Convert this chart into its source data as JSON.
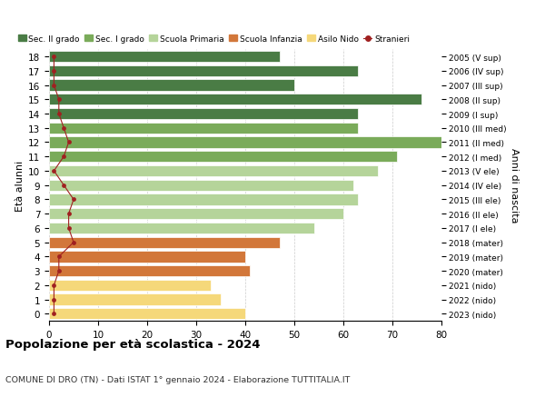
{
  "ages": [
    18,
    17,
    16,
    15,
    14,
    13,
    12,
    11,
    10,
    9,
    8,
    7,
    6,
    5,
    4,
    3,
    2,
    1,
    0
  ],
  "years": [
    "2005 (V sup)",
    "2006 (IV sup)",
    "2007 (III sup)",
    "2008 (II sup)",
    "2009 (I sup)",
    "2010 (III med)",
    "2011 (II med)",
    "2012 (I med)",
    "2013 (V ele)",
    "2014 (IV ele)",
    "2015 (III ele)",
    "2016 (II ele)",
    "2017 (I ele)",
    "2018 (mater)",
    "2019 (mater)",
    "2020 (mater)",
    "2021 (nido)",
    "2022 (nido)",
    "2023 (nido)"
  ],
  "values": [
    47,
    63,
    50,
    76,
    63,
    63,
    80,
    71,
    67,
    62,
    63,
    60,
    54,
    47,
    40,
    41,
    33,
    35,
    40
  ],
  "stranieri": [
    1,
    1,
    1,
    2,
    2,
    3,
    4,
    3,
    1,
    3,
    5,
    4,
    4,
    5,
    2,
    2,
    1,
    1,
    1
  ],
  "bar_colors": [
    "#4a7c45",
    "#4a7c45",
    "#4a7c45",
    "#4a7c45",
    "#4a7c45",
    "#7aab5a",
    "#7aab5a",
    "#7aab5a",
    "#b5d49a",
    "#b5d49a",
    "#b5d49a",
    "#b5d49a",
    "#b5d49a",
    "#d2773a",
    "#d2773a",
    "#d2773a",
    "#f5d87a",
    "#f5d87a",
    "#f5d87a"
  ],
  "legend_labels": [
    "Sec. II grado",
    "Sec. I grado",
    "Scuola Primaria",
    "Scuola Infanzia",
    "Asilo Nido",
    "Stranieri"
  ],
  "legend_colors": [
    "#4a7c45",
    "#7aab5a",
    "#b5d49a",
    "#d2773a",
    "#f5d87a",
    "#a02020"
  ],
  "title": "Popolazione per età scolastica - 2024",
  "subtitle": "COMUNE DI DRO (TN) - Dati ISTAT 1° gennaio 2024 - Elaborazione TUTTITALIA.IT",
  "ylabel": "Età alunni",
  "ylabel2": "Anni di nascita",
  "xlim": [
    0,
    80
  ],
  "xticks": [
    0,
    10,
    20,
    30,
    40,
    50,
    60,
    70,
    80
  ],
  "bar_height": 0.78,
  "line_color": "#a02020",
  "dot_color": "#a02020",
  "background_color": "#ffffff",
  "grid_color": "#cccccc"
}
